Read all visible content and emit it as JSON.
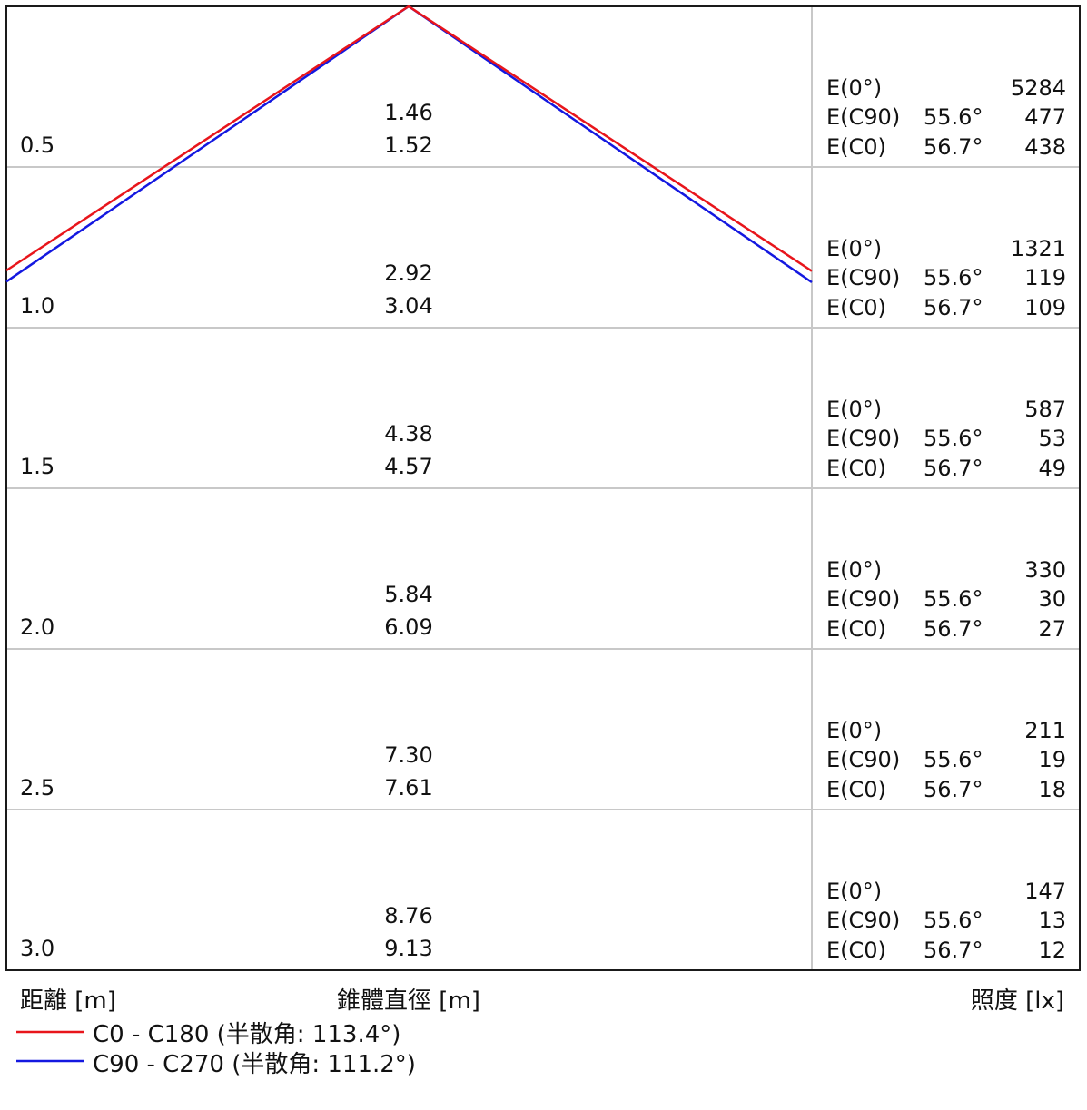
{
  "chart_data": {
    "type": "cone_diagram",
    "xlabel": "距離 [m]",
    "middle_label": "錐體直徑 [m]",
    "right_label": "照度 [lx]",
    "series": [
      {
        "name": "C0 - C180 (半散角: 113.4°)",
        "color": "#e8151b",
        "half_angle_deg": 113.4
      },
      {
        "name": "C90 - C270 (半散角: 111.2°)",
        "color": "#1418e0",
        "half_angle_deg": 111.2
      }
    ],
    "rows": [
      {
        "distance": "0.5",
        "diam_c90": "1.46",
        "diam_c0": "1.52",
        "e_labels": [
          "E(0°)",
          "E(C90)",
          "E(C0)"
        ],
        "angle_c90": "55.6°",
        "angle_c0": "56.7°",
        "e0": "5284",
        "e_c90": "477",
        "e_c0": "438"
      },
      {
        "distance": "1.0",
        "diam_c90": "2.92",
        "diam_c0": "3.04",
        "e_labels": [
          "E(0°)",
          "E(C90)",
          "E(C0)"
        ],
        "angle_c90": "55.6°",
        "angle_c0": "56.7°",
        "e0": "1321",
        "e_c90": "119",
        "e_c0": "109"
      },
      {
        "distance": "1.5",
        "diam_c90": "4.38",
        "diam_c0": "4.57",
        "e_labels": [
          "E(0°)",
          "E(C90)",
          "E(C0)"
        ],
        "angle_c90": "55.6°",
        "angle_c0": "56.7°",
        "e0": "587",
        "e_c90": "53",
        "e_c0": "49"
      },
      {
        "distance": "2.0",
        "diam_c90": "5.84",
        "diam_c0": "6.09",
        "e_labels": [
          "E(0°)",
          "E(C90)",
          "E(C0)"
        ],
        "angle_c90": "55.6°",
        "angle_c0": "56.7°",
        "e0": "330",
        "e_c90": "30",
        "e_c0": "27"
      },
      {
        "distance": "2.5",
        "diam_c90": "7.30",
        "diam_c0": "7.61",
        "e_labels": [
          "E(0°)",
          "E(C90)",
          "E(C0)"
        ],
        "angle_c90": "55.6°",
        "angle_c0": "56.7°",
        "e0": "211",
        "e_c90": "19",
        "e_c0": "18"
      },
      {
        "distance": "3.0",
        "diam_c90": "8.76",
        "diam_c0": "9.13",
        "e_labels": [
          "E(0°)",
          "E(C90)",
          "E(C0)"
        ],
        "angle_c90": "55.6°",
        "angle_c0": "56.7°",
        "e0": "147",
        "e_c90": "13",
        "e_c0": "12"
      }
    ]
  }
}
